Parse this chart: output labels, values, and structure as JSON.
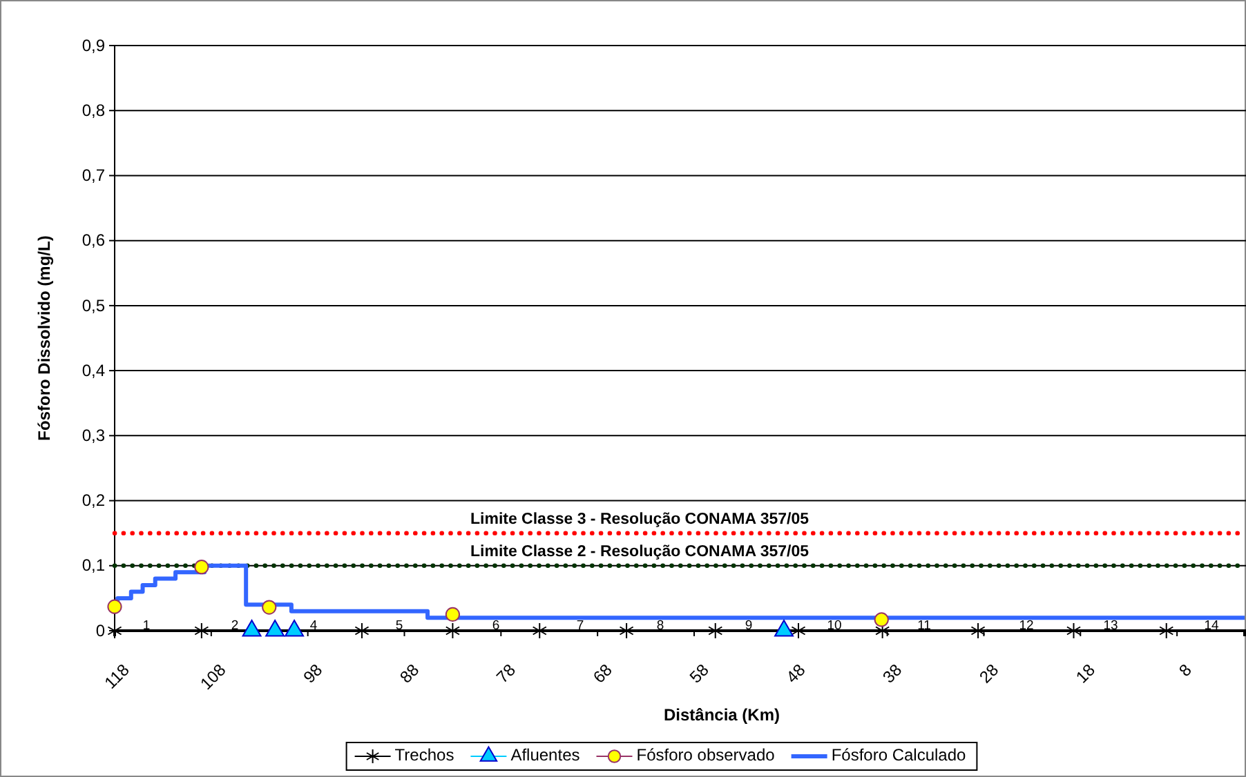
{
  "chart_data": {
    "type": "scatter",
    "xlabel": "Distância (Km)",
    "ylabel": "Fósforo Dissolvido (mg/L)",
    "xlim": [
      118,
      1
    ],
    "xticks": [
      118,
      108,
      98,
      88,
      78,
      68,
      58,
      48,
      38,
      28,
      18,
      8
    ],
    "ylim": [
      0,
      0.9
    ],
    "yticks": [
      {
        "value": 0,
        "label": "0"
      },
      {
        "value": 0.1,
        "label": "0,1"
      },
      {
        "value": 0.2,
        "label": "0,2"
      },
      {
        "value": 0.3,
        "label": "0,3"
      },
      {
        "value": 0.4,
        "label": "0,4"
      },
      {
        "value": 0.5,
        "label": "0,5"
      },
      {
        "value": 0.6,
        "label": "0,6"
      },
      {
        "value": 0.7,
        "label": "0,7"
      },
      {
        "value": 0.8,
        "label": "0,8"
      },
      {
        "value": 0.9,
        "label": "0,9"
      }
    ],
    "grid": "y",
    "legend": "bottom",
    "series": [
      {
        "name": "Trechos",
        "marker": "cross",
        "color": "#000000",
        "x": [
          118,
          109,
          92.4,
          83,
          74,
          65,
          55.8,
          47.2,
          38.5,
          28.6,
          18.7,
          9.1
        ],
        "values": [
          0,
          0,
          0,
          0,
          0,
          0,
          0,
          0,
          0,
          0,
          0,
          0
        ]
      },
      {
        "name": "Afluentes",
        "marker": "triangle",
        "color": "#00ccff",
        "x": [
          103.8,
          101.4,
          99.4,
          48.7
        ],
        "values": [
          0,
          0,
          0,
          0
        ]
      },
      {
        "name": "Fósforo observado",
        "marker": "circle",
        "color": "#ffff00",
        "x": [
          118,
          109,
          102,
          83,
          38.6
        ],
        "values": [
          0.037,
          0.098,
          0.036,
          0.025,
          0.017
        ]
      },
      {
        "name": "Fósforo Calculado",
        "type": "step",
        "marker": "none",
        "color": "#3366ff",
        "x": [
          118,
          117.7,
          116.3,
          115.1,
          113.8,
          111.7,
          108.7,
          104.4,
          99.7,
          85.6,
          1
        ],
        "values": [
          0.04,
          0.05,
          0.06,
          0.07,
          0.08,
          0.09,
          0.1,
          0.04,
          0.03,
          0.02,
          0.02
        ]
      }
    ],
    "ref_lines": [
      {
        "axis": "y",
        "value": 0.15,
        "label": "Limite Classe 3 - Resolução CONAMA 357/05",
        "color": "#ff0000",
        "line_style": "dotted"
      },
      {
        "axis": "y",
        "value": 0.1,
        "label": "Limite Classe 2 - Resolução CONAMA 357/05",
        "color": "#003300",
        "line_style": "dotted"
      }
    ],
    "annotations": [
      "1",
      "2",
      "4",
      "5",
      "6",
      "7",
      "8",
      "9",
      "10",
      "11",
      "12",
      "13",
      "14"
    ]
  }
}
